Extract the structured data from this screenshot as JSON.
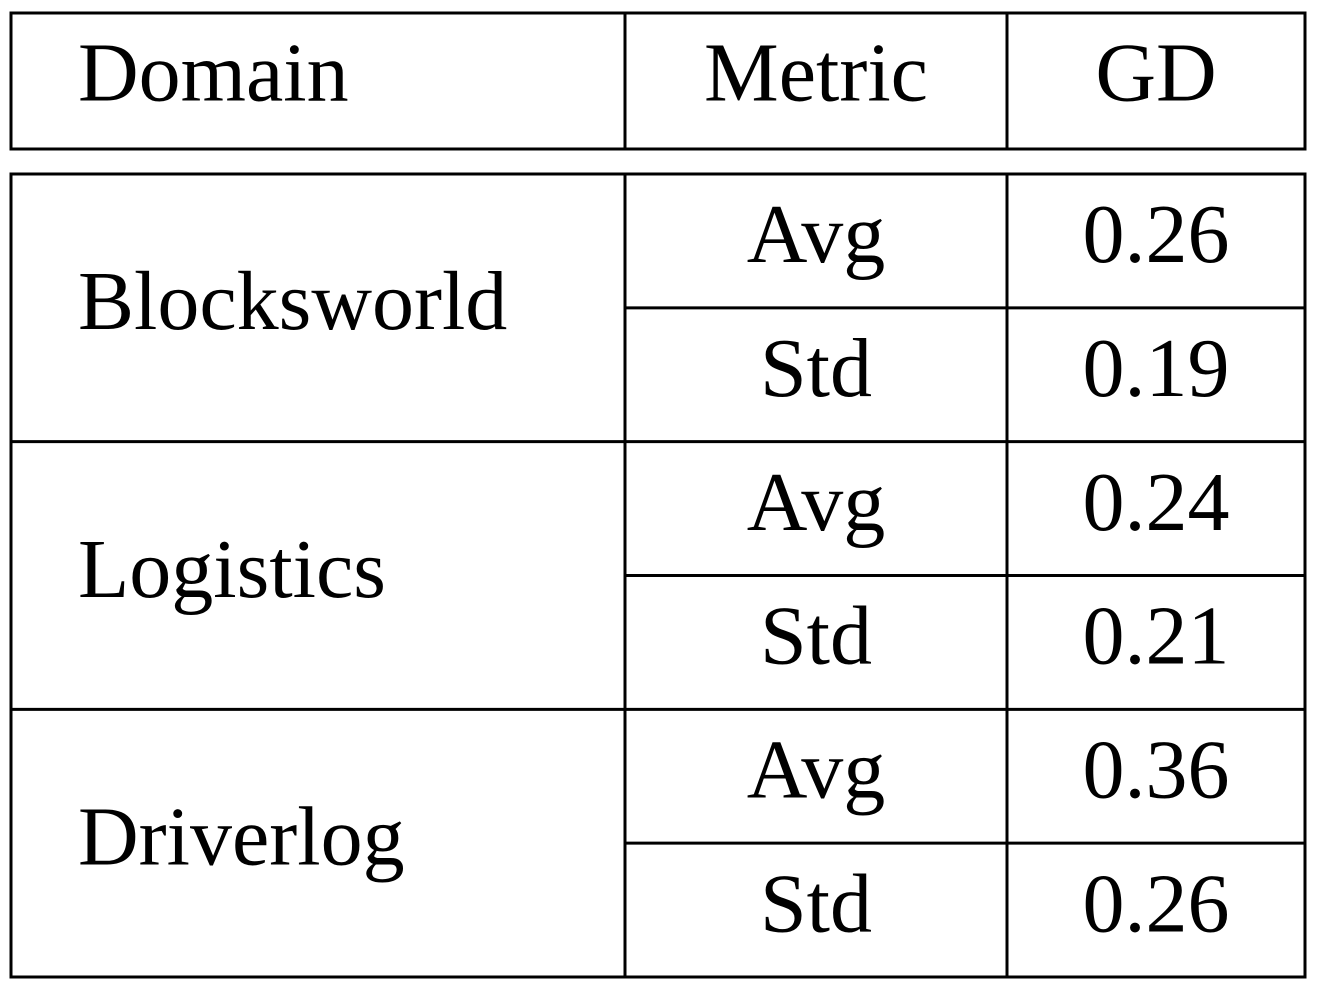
{
  "table": {
    "header": [
      "Domain",
      "Metric",
      "GD"
    ],
    "groups": [
      {
        "domain": "Blocksworld",
        "rows": [
          [
            "Avg",
            0.26
          ],
          [
            "Std",
            0.19
          ]
        ]
      },
      {
        "domain": "Logistics",
        "rows": [
          [
            "Avg",
            0.24
          ],
          [
            "Std",
            0.21
          ]
        ]
      },
      {
        "domain": "Driverlog",
        "rows": [
          [
            "Avg",
            0.36
          ],
          [
            "Std",
            0.26
          ]
        ]
      }
    ]
  }
}
